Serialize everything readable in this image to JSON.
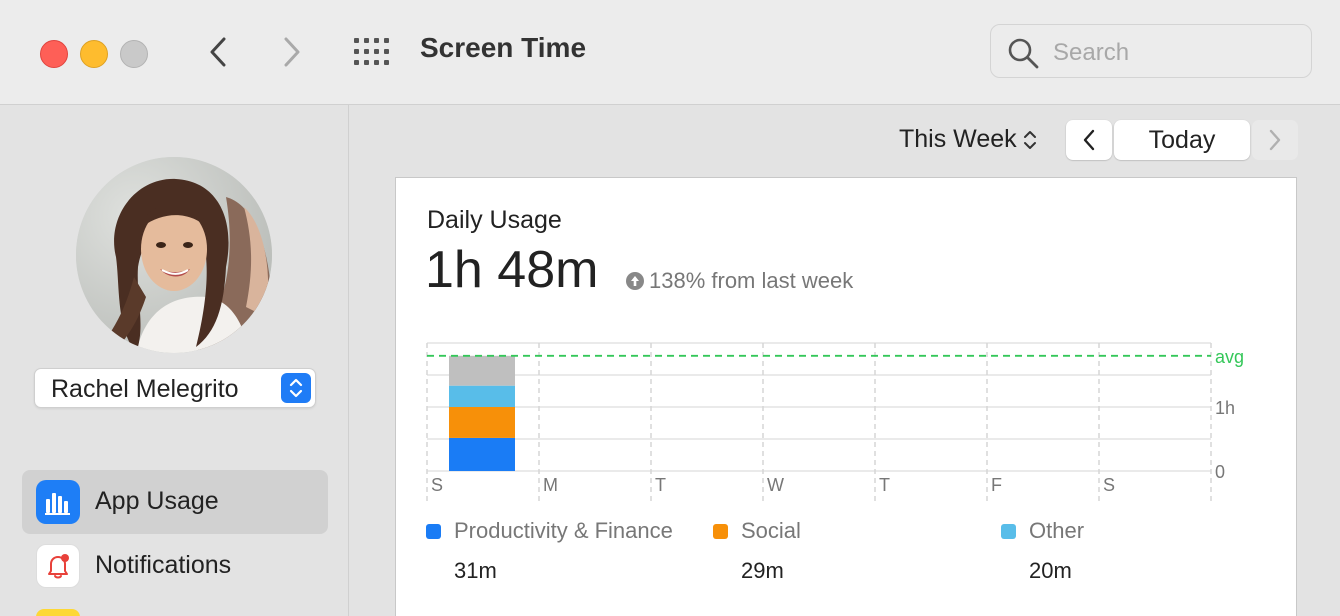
{
  "window": {
    "title": "Screen Time",
    "search_placeholder": "Search"
  },
  "sidebar": {
    "user_name": "Rachel Melegrito",
    "items": [
      {
        "label": "App Usage",
        "icon": "bar-chart-icon",
        "active": true
      },
      {
        "label": "Notifications",
        "icon": "bell-icon",
        "active": false
      }
    ]
  },
  "toolbar": {
    "period": "This Week",
    "today": "Today"
  },
  "usage": {
    "label": "Daily Usage",
    "total": "1h 48m",
    "trend": "138% from last week"
  },
  "chart_data": {
    "type": "bar",
    "categories": [
      "S",
      "M",
      "T",
      "W",
      "T",
      "F",
      "S"
    ],
    "y_ticks": [
      "avg",
      "1h",
      "0"
    ],
    "avg_minutes": 108,
    "series": [
      {
        "name": "Productivity & Finance",
        "color": "#1a7cf5",
        "values": [
          31,
          0,
          0,
          0,
          0,
          0,
          0
        ],
        "display": "31m"
      },
      {
        "name": "Social",
        "color": "#f79009",
        "values": [
          29,
          0,
          0,
          0,
          0,
          0,
          0
        ],
        "display": "29m"
      },
      {
        "name": "Other",
        "color": "#58bde9",
        "values": [
          20,
          0,
          0,
          0,
          0,
          0,
          0
        ],
        "display": "20m"
      },
      {
        "color": "#bfbfbf",
        "values": [
          28,
          0,
          0,
          0,
          0,
          0,
          0
        ]
      }
    ],
    "ylim": [
      0,
      120
    ],
    "grid": true
  }
}
